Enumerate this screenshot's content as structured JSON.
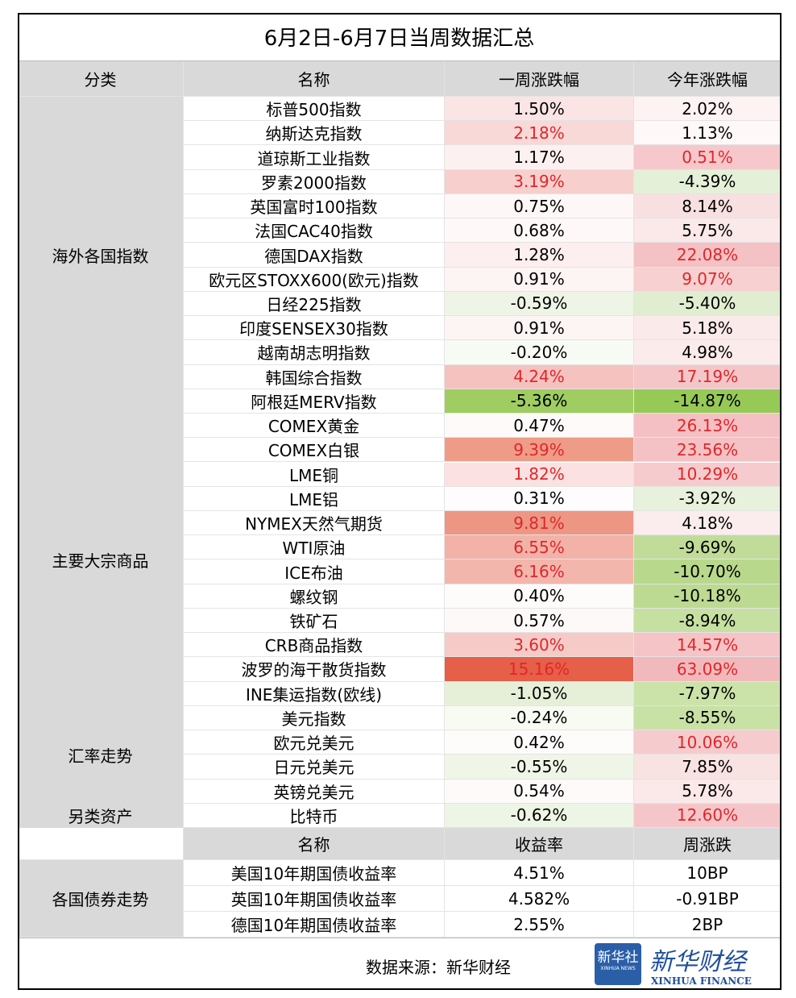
{
  "title": "6月2日-6月7日当周数据汇总",
  "header": [
    "分类",
    "名称",
    "一周涨跌幅",
    "今年涨跌幅"
  ],
  "groups": [
    {
      "category": "海外各国指数",
      "rows": [
        {
          "name": "标普500指数",
          "week": "1.50%",
          "year": "2.02%",
          "week_fill": "#fbe4e4",
          "year_fill": "#fdf3f3"
        },
        {
          "name": "纳斯达克指数",
          "week": "2.18%",
          "year": "1.13%",
          "week_fill": "#f9d8d8",
          "year_fill": "#fef8f8",
          "week_color": "#e0262b"
        },
        {
          "name": "道琼斯工业指数",
          "week": "1.17%",
          "year": "0.51%",
          "week_fill": "#fdf0f0",
          "year_fill": "#f6c8cb",
          "year_color": "#e0262b"
        },
        {
          "name": "罗素2000指数",
          "week": "3.19%",
          "year": "-4.39%",
          "week_fill": "#f7cfcd",
          "year_fill": "#e5f0d8",
          "week_color": "#e0262b"
        },
        {
          "name": "英国富时100指数",
          "week": "0.75%",
          "year": "8.14%",
          "week_fill": "#fef7f7",
          "year_fill": "#f8e0e0"
        },
        {
          "name": "法国CAC40指数",
          "week": "0.68%",
          "year": "5.75%",
          "week_fill": "#fef8f8",
          "year_fill": "#fbe8e8"
        },
        {
          "name": "德国DAX指数",
          "week": "1.28%",
          "year": "22.08%",
          "week_fill": "#fdefef",
          "year_fill": "#f4c2c4",
          "year_color": "#e0262b"
        },
        {
          "name": "欧元区STOXX600(欧元)指数",
          "week": "0.91%",
          "year": "9.07%",
          "week_fill": "#fdf4f4",
          "year_fill": "#f7d0d1",
          "year_color": "#e0262b"
        },
        {
          "name": "日经225指数",
          "week": "-0.59%",
          "year": "-5.40%",
          "week_fill": "#eef5e6",
          "year_fill": "#e0edd0"
        },
        {
          "name": "印度SENSEX30指数",
          "week": "0.91%",
          "year": "5.18%",
          "week_fill": "#fdf4f4",
          "year_fill": "#fbeaea"
        },
        {
          "name": "越南胡志明指数",
          "week": "-0.20%",
          "year": "4.98%",
          "week_fill": "#f8fbf4",
          "year_fill": "#fbebeb"
        },
        {
          "name": "韩国综合指数",
          "week": "4.24%",
          "year": "17.19%",
          "week_fill": "#f5c2bf",
          "year_fill": "#f5c6c8",
          "week_color": "#e0262b",
          "year_color": "#e0262b"
        },
        {
          "name": "阿根廷MERV指数",
          "week": "-5.36%",
          "year": "-14.87%",
          "week_fill": "#9fcd62",
          "year_fill": "#97c957"
        }
      ]
    },
    {
      "category": "主要大宗商品",
      "rows": [
        {
          "name": "COMEX黄金",
          "week": "0.47%",
          "year": "26.13%",
          "week_fill": "#fefafa",
          "year_fill": "#f4c0c3",
          "year_color": "#e0262b"
        },
        {
          "name": "COMEX白银",
          "week": "9.39%",
          "year": "23.56%",
          "week_fill": "#ee9c88",
          "year_fill": "#f4c2c4",
          "week_color": "#e0262b",
          "year_color": "#e0262b"
        },
        {
          "name": "LME铜",
          "week": "1.82%",
          "year": "10.29%",
          "week_fill": "#fbe1e1",
          "year_fill": "#f6cbcd",
          "week_color": "#e0262b",
          "year_color": "#e0262b"
        },
        {
          "name": "LME铝",
          "week": "0.31%",
          "year": "-3.92%",
          "week_fill": "#fefcfc",
          "year_fill": "#e7f1db"
        },
        {
          "name": "NYMEX天然气期货",
          "week": "9.81%",
          "year": "4.18%",
          "week_fill": "#ed9683",
          "year_fill": "#fbeded",
          "week_color": "#e0262b"
        },
        {
          "name": "WTI原油",
          "week": "6.55%",
          "year": "-9.69%",
          "week_fill": "#f3b2a7",
          "year_fill": "#c0dc98",
          "week_color": "#e0262b"
        },
        {
          "name": "ICE布油",
          "week": "6.16%",
          "year": "-10.70%",
          "week_fill": "#f3b6ac",
          "year_fill": "#b8d88b",
          "week_color": "#e0262b"
        },
        {
          "name": "螺纹钢",
          "week": "0.40%",
          "year": "-10.18%",
          "week_fill": "#fefbfb",
          "year_fill": "#bcda91"
        },
        {
          "name": "铁矿石",
          "week": "0.57%",
          "year": "-8.94%",
          "week_fill": "#fef9f9",
          "year_fill": "#c6e0a1"
        },
        {
          "name": "CRB商品指数",
          "week": "3.60%",
          "year": "14.57%",
          "week_fill": "#f6cbc7",
          "year_fill": "#f5c4c6",
          "week_color": "#e0262b",
          "year_color": "#e0262b"
        },
        {
          "name": "波罗的海干散货指数",
          "week": "15.16%",
          "year": "63.09%",
          "week_fill": "#e65f48",
          "year_fill": "#f2b9bc",
          "week_color": "#e0262b",
          "year_color": "#e0262b"
        },
        {
          "name": "INE集运指数(欧线)",
          "week": "-1.05%",
          "year": "-7.97%",
          "week_fill": "#e6f0d9",
          "year_fill": "#cbe3a9"
        }
      ]
    },
    {
      "category": "汇率走势",
      "rows": [
        {
          "name": "美元指数",
          "week": "-0.24%",
          "year": "-8.55%",
          "week_fill": "#f7fbf2",
          "year_fill": "#c8e1a5"
        },
        {
          "name": "欧元兑美元",
          "week": "0.42%",
          "year": "10.06%",
          "week_fill": "#fefbfb",
          "year_fill": "#f6cbcd",
          "year_color": "#e0262b"
        },
        {
          "name": "日元兑美元",
          "week": "-0.55%",
          "year": "7.85%",
          "week_fill": "#eff6e7",
          "year_fill": "#f9e2e2"
        },
        {
          "name": "英镑兑美元",
          "week": "0.54%",
          "year": "5.78%",
          "week_fill": "#fefafa",
          "year_fill": "#fbe8e8"
        }
      ]
    },
    {
      "category": "另类资产",
      "rows": [
        {
          "name": "比特币",
          "week": "-0.62%",
          "year": "12.60%",
          "week_fill": "#edf5e4",
          "year_fill": "#f5c6c9",
          "year_color": "#e0262b"
        }
      ]
    }
  ],
  "bonds": {
    "header": [
      "名称",
      "收益率",
      "周涨跌"
    ],
    "category": "各国债券走势",
    "rows": [
      [
        "美国10年期国债收益率",
        "4.51%",
        "10BP"
      ],
      [
        "英国10年期国债收益率",
        "4.582%",
        "-0.91BP"
      ],
      [
        "德国10年期国债收益率",
        "2.55%",
        "2BP"
      ]
    ]
  },
  "footer": {
    "source": "数据来源：新华财经",
    "logo_cn": "新华社",
    "logo_en": "XINHUA NEWS",
    "brand_cn": "新华财经",
    "brand_en": "XINHUA FINANCE"
  }
}
